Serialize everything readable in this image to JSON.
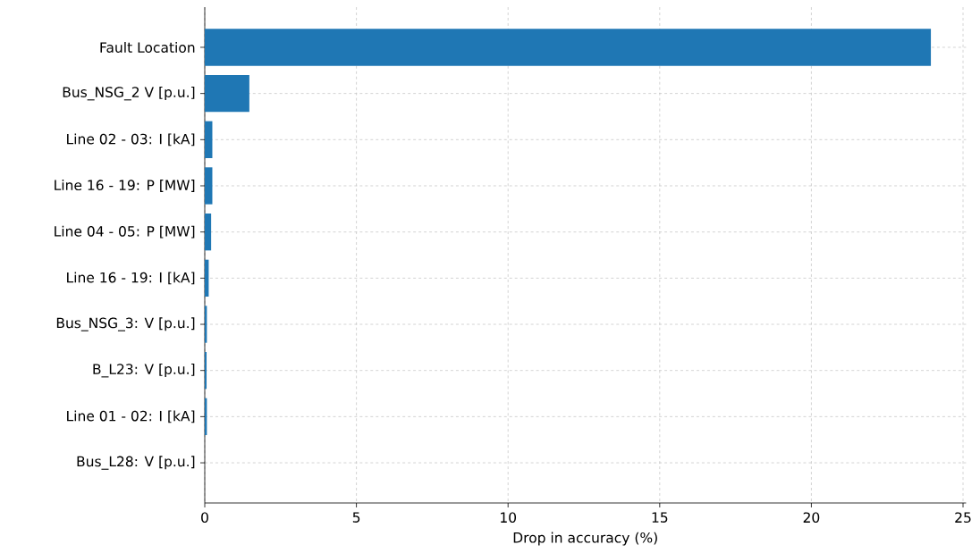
{
  "chart_data": {
    "type": "bar",
    "orientation": "horizontal",
    "xlabel": "Drop in accuracy (%)",
    "categories": [
      "Fault Location",
      "Bus_NSG_2 V [p.u.]",
      "Line 02 - 03: I [kA]",
      "Line 16 - 19: P [MW]",
      "Line 04 - 05: P [MW]",
      "Line 16 - 19: I [kA]",
      "Bus_NSG_3: V [p.u.]",
      "B_L23: V [p.u.]",
      "Line 01 - 02: I [kA]",
      "Bus_L28: V [p.u.]"
    ],
    "values": [
      23.94,
      1.47,
      0.25,
      0.25,
      0.21,
      0.13,
      0.07,
      0.06,
      0.07,
      0
    ],
    "color": "#1f77b4",
    "xlim": [
      0,
      25.1
    ],
    "xticks": [
      0,
      5,
      10,
      15,
      20,
      25
    ],
    "grid": true
  }
}
